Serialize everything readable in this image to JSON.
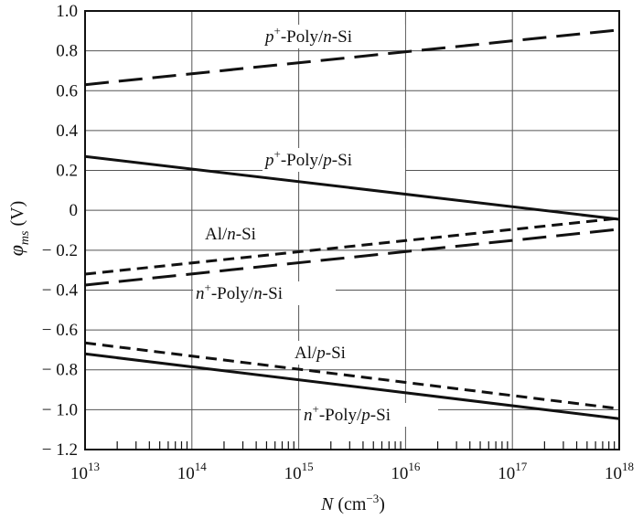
{
  "chart_data": {
    "type": "line",
    "xscale": "log",
    "xlim": [
      10000000000000.0,
      1e+18
    ],
    "ylim": [
      -1.2,
      1.0
    ],
    "grid": true,
    "legend": "inline-labels",
    "xlabel": "N (cm⁻³)",
    "ylabel": "φms (V)",
    "x_ticks": [
      {
        "value": 10000000000000.0,
        "base": "10",
        "exp": "13"
      },
      {
        "value": 100000000000000.0,
        "base": "10",
        "exp": "14"
      },
      {
        "value": 1000000000000000.0,
        "base": "10",
        "exp": "15"
      },
      {
        "value": 1e+16,
        "base": "10",
        "exp": "16"
      },
      {
        "value": 1e+17,
        "base": "10",
        "exp": "17"
      },
      {
        "value": 1e+18,
        "base": "10",
        "exp": "18"
      }
    ],
    "y_ticks": [
      {
        "value": 1.0,
        "label": "1.0"
      },
      {
        "value": 0.8,
        "label": "0.8"
      },
      {
        "value": 0.6,
        "label": "0.6"
      },
      {
        "value": 0.4,
        "label": "0.4"
      },
      {
        "value": 0.2,
        "label": "0.2"
      },
      {
        "value": 0,
        "label": "0"
      },
      {
        "value": -0.2,
        "label": "− 0.2"
      },
      {
        "value": -0.4,
        "label": "− 0.4"
      },
      {
        "value": -0.6,
        "label": "− 0.6"
      },
      {
        "value": -0.8,
        "label": "− 0.8"
      },
      {
        "value": -1.0,
        "label": "− 1.0"
      },
      {
        "value": -1.2,
        "label": "− 1.2"
      }
    ],
    "series": [
      {
        "name": "p⁺-Poly/n-Si",
        "style": "long-dash",
        "x": [
          10000000000000.0,
          1e+18
        ],
        "y": [
          0.63,
          0.905
        ]
      },
      {
        "name": "p⁺-Poly/p-Si",
        "style": "solid",
        "x": [
          10000000000000.0,
          1e+18
        ],
        "y": [
          0.27,
          -0.045
        ]
      },
      {
        "name": "Al/n-Si",
        "style": "short-dash",
        "x": [
          10000000000000.0,
          1e+18
        ],
        "y": [
          -0.32,
          -0.04
        ]
      },
      {
        "name": "n⁺-Poly/n-Si",
        "style": "long-dash",
        "x": [
          10000000000000.0,
          1e+18
        ],
        "y": [
          -0.375,
          -0.095
        ]
      },
      {
        "name": "Al/p-Si",
        "style": "short-dash",
        "x": [
          10000000000000.0,
          1e+18
        ],
        "y": [
          -0.665,
          -0.995
        ]
      },
      {
        "name": "n⁺-Poly/p-Si",
        "style": "solid",
        "x": [
          10000000000000.0,
          1e+18
        ],
        "y": [
          -0.72,
          -1.045
        ]
      }
    ]
  }
}
